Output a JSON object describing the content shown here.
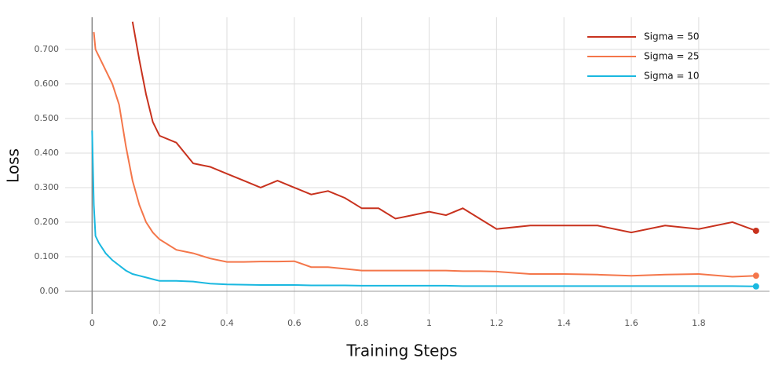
{
  "chart_data": {
    "type": "line",
    "x_label": "Training Steps",
    "y_label": "Loss",
    "x": [
      0,
      0.005,
      0.01,
      0.02,
      0.04,
      0.06,
      0.08,
      0.1,
      0.12,
      0.14,
      0.16,
      0.18,
      0.2,
      0.25,
      0.3,
      0.35,
      0.4,
      0.45,
      0.5,
      0.55,
      0.6,
      0.65,
      0.7,
      0.75,
      0.8,
      0.85,
      0.9,
      0.95,
      1.0,
      1.05,
      1.1,
      1.15,
      1.2,
      1.3,
      1.4,
      1.5,
      1.6,
      1.7,
      1.8,
      1.9,
      1.97
    ],
    "series": [
      {
        "name": "Sigma = 50",
        "color": "#c8321e",
        "values": [
          null,
          null,
          null,
          null,
          null,
          null,
          null,
          null,
          0.78,
          0.67,
          0.57,
          0.49,
          0.45,
          0.43,
          0.37,
          0.36,
          0.34,
          0.32,
          0.3,
          0.32,
          0.3,
          0.28,
          0.29,
          0.27,
          0.24,
          0.24,
          0.21,
          0.22,
          0.23,
          0.22,
          0.24,
          0.21,
          0.18,
          0.19,
          0.19,
          0.19,
          0.17,
          0.19,
          0.18,
          0.2,
          0.175
        ]
      },
      {
        "name": "Sigma = 25",
        "color": "#f4764a",
        "values": [
          null,
          0.75,
          0.7,
          0.68,
          0.64,
          0.6,
          0.54,
          0.42,
          0.32,
          0.25,
          0.2,
          0.17,
          0.15,
          0.12,
          0.11,
          0.095,
          0.085,
          0.085,
          0.086,
          0.086,
          0.087,
          0.07,
          0.07,
          0.065,
          0.06,
          0.06,
          0.06,
          0.06,
          0.06,
          0.06,
          0.058,
          0.058,
          0.057,
          0.05,
          0.05,
          0.048,
          0.045,
          0.048,
          0.05,
          0.042,
          0.045
        ]
      },
      {
        "name": "Sigma = 10",
        "color": "#1ab8e0",
        "values": [
          0.465,
          0.25,
          0.16,
          0.14,
          0.11,
          0.09,
          0.075,
          0.06,
          0.05,
          0.045,
          0.04,
          0.035,
          0.03,
          0.03,
          0.028,
          0.022,
          0.02,
          0.019,
          0.018,
          0.018,
          0.018,
          0.017,
          0.017,
          0.017,
          0.016,
          0.016,
          0.016,
          0.016,
          0.016,
          0.016,
          0.015,
          0.015,
          0.015,
          0.015,
          0.015,
          0.015,
          0.015,
          0.015,
          0.015,
          0.015,
          0.014
        ]
      }
    ],
    "xlim": [
      -0.08,
      2.01
    ],
    "xticks": [
      0,
      0.2,
      0.4,
      0.6,
      0.8,
      1,
      1.2,
      1.4,
      1.6,
      1.8
    ],
    "ylim": [
      -0.066,
      0.793
    ],
    "yticks": [
      {
        "value": 0,
        "label": "0.00"
      },
      {
        "value": 0.1,
        "label": "0.100"
      },
      {
        "value": 0.2,
        "label": "0.200"
      },
      {
        "value": 0.3,
        "label": "0.300"
      },
      {
        "value": 0.4,
        "label": "0.400"
      },
      {
        "value": 0.5,
        "label": "0.500"
      },
      {
        "value": 0.6,
        "label": "0.600"
      },
      {
        "value": 0.7,
        "label": "0.700"
      }
    ],
    "grid": true,
    "legend": "upper right"
  }
}
